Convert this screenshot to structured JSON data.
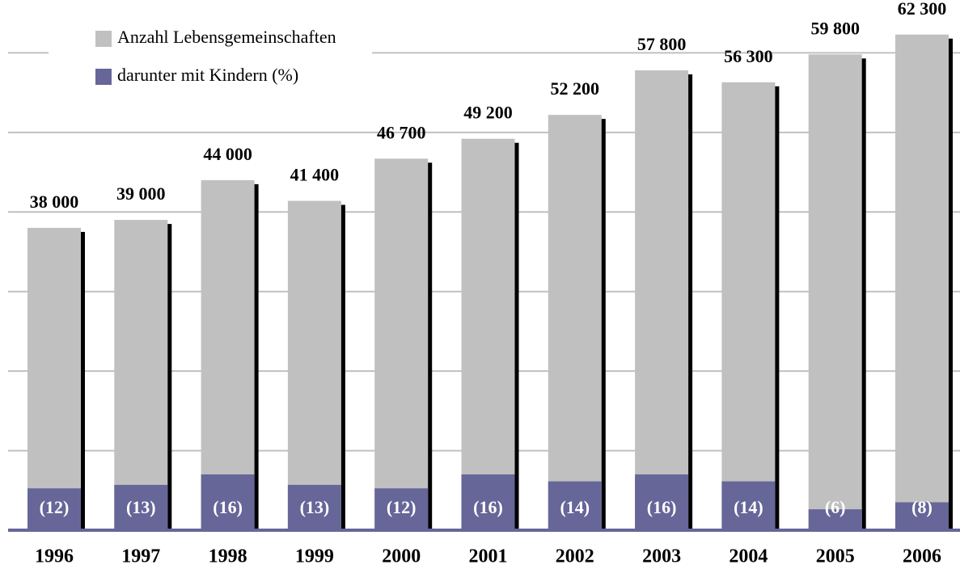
{
  "chart_data": {
    "type": "bar",
    "categories": [
      "1996",
      "1997",
      "1998",
      "1999",
      "2000",
      "2001",
      "2002",
      "2003",
      "2004",
      "2005",
      "2006"
    ],
    "series": [
      {
        "name": "Anzahl Lebensgemeinschaften",
        "color": "#c0c0c0",
        "values": [
          38000,
          39000,
          44000,
          41400,
          46700,
          49200,
          52200,
          57800,
          56300,
          59800,
          62300
        ],
        "value_labels": [
          "38 000",
          "39 000",
          "44 000",
          "41 400",
          "46 700",
          "49 200",
          "52 200",
          "57 800",
          "56 300",
          "59 800",
          "62 300"
        ]
      },
      {
        "name": "darunter mit Kindern (%)",
        "color": "#666699",
        "axis": "y2",
        "values": [
          12,
          13,
          16,
          13,
          12,
          16,
          14,
          16,
          14,
          6,
          8
        ],
        "value_labels": [
          "(12)",
          "(13)",
          "(16)",
          "(13)",
          "(12)",
          "(16)",
          "(14)",
          "(16)",
          "(14)",
          "(6)",
          "(8)"
        ]
      }
    ],
    "ylim": [
      0,
      64000
    ],
    "yticks": [
      0,
      10000,
      20000,
      30000,
      40000,
      50000,
      60000
    ],
    "y2lim": [
      0,
      146
    ],
    "grid": true,
    "legend": "top-left"
  }
}
